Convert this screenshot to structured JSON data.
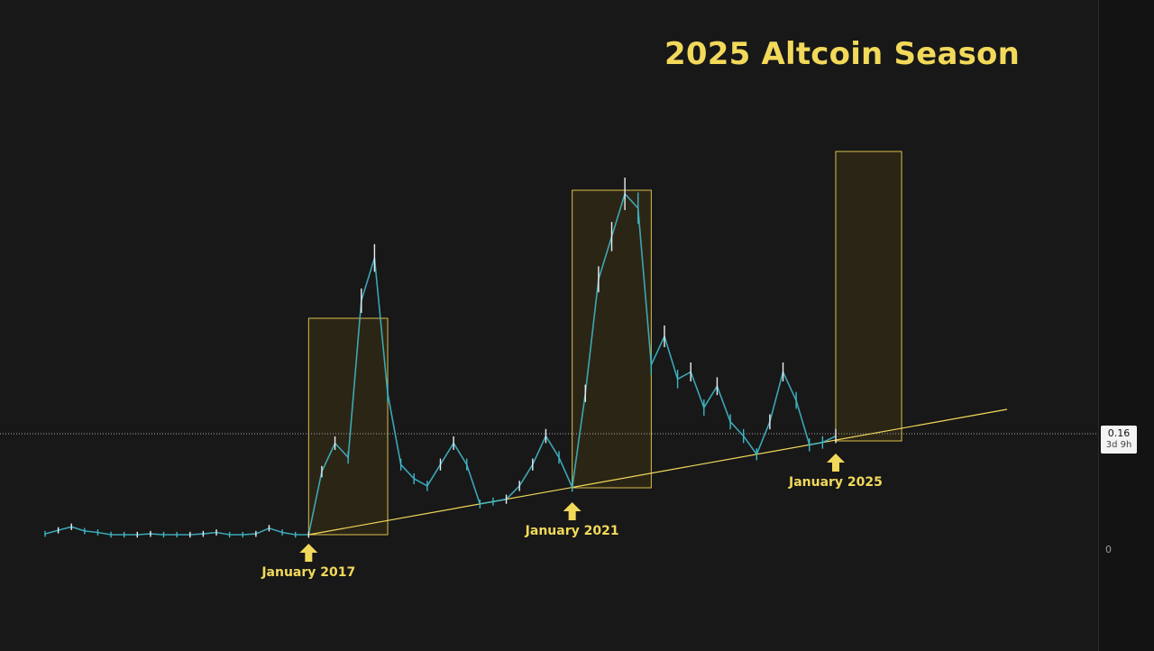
{
  "chart_data": {
    "type": "line",
    "title": "2025 Altcoin Season",
    "xlabel": "",
    "ylabel": "",
    "x": [
      2013.0,
      2013.2,
      2013.4,
      2013.6,
      2013.8,
      2014.0,
      2014.2,
      2014.4,
      2014.6,
      2014.8,
      2015.0,
      2015.2,
      2015.4,
      2015.6,
      2015.8,
      2016.0,
      2016.2,
      2016.4,
      2016.6,
      2016.8,
      2017.0,
      2017.2,
      2017.4,
      2017.6,
      2017.8,
      2018.0,
      2018.2,
      2018.4,
      2018.6,
      2018.8,
      2019.0,
      2019.2,
      2019.4,
      2019.6,
      2019.8,
      2020.0,
      2020.2,
      2020.4,
      2020.6,
      2020.8,
      2021.0,
      2021.2,
      2021.4,
      2021.6,
      2021.8,
      2022.0,
      2022.2,
      2022.4,
      2022.6,
      2022.8,
      2023.0,
      2023.2,
      2023.4,
      2023.6,
      2023.8,
      2024.0,
      2024.2,
      2024.4,
      2024.6,
      2024.8,
      2025.0
    ],
    "y": [
      0.01,
      0.015,
      0.02,
      0.014,
      0.012,
      0.008,
      0.006,
      0.007,
      0.01,
      0.005,
      0.003,
      0.006,
      0.01,
      0.012,
      0.008,
      0.005,
      0.01,
      0.018,
      0.012,
      0.008,
      0.012,
      0.11,
      0.15,
      0.13,
      0.35,
      0.41,
      0.22,
      0.12,
      0.1,
      0.09,
      0.12,
      0.15,
      0.12,
      0.06,
      0.05,
      0.07,
      0.09,
      0.12,
      0.16,
      0.13,
      0.06,
      0.22,
      0.38,
      0.44,
      0.5,
      0.48,
      0.26,
      0.3,
      0.24,
      0.25,
      0.2,
      0.23,
      0.18,
      0.16,
      0.12,
      0.18,
      0.25,
      0.21,
      0.14,
      0.13,
      0.16
    ],
    "price_ticks": [
      "0"
    ],
    "last_price": "0.16",
    "countdown": "3d 9h",
    "annotations": [
      {
        "label": "January 2017",
        "x": 2017.0
      },
      {
        "label": "January 2021",
        "x": 2021.0
      },
      {
        "label": "January 2025",
        "x": 2025.0
      }
    ],
    "highlight_boxes": [
      {
        "x_start": 2017.0,
        "x_end": 2018.2
      },
      {
        "x_start": 2021.0,
        "x_end": 2022.2
      },
      {
        "x_start": 2025.0,
        "x_end": 2026.0
      }
    ],
    "trendline": {
      "x": [
        2017.0,
        2027.6
      ],
      "y": [
        0.0,
        0.19
      ]
    },
    "colors": {
      "background": "#181818",
      "candle": "#e9eef2",
      "candle_alt": "#3fb6c6",
      "accent": "#f2d95a",
      "box_fill": "#2e2716",
      "box_stroke": "#d8c04a"
    }
  }
}
